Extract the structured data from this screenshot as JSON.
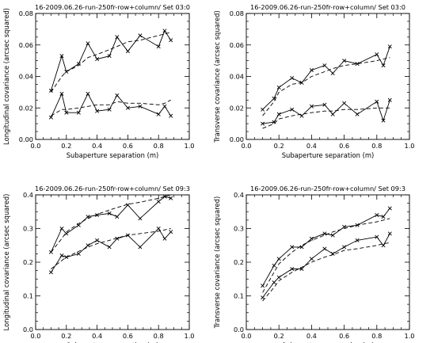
{
  "chart_data": [
    {
      "type": "line",
      "title": "16-2009.06.26-run-250fr-row+column/ Set 03:0",
      "xlabel": "Subaperture separation (m)",
      "ylabel": "Longitudinal covariance (arcsec squared)",
      "xlim": [
        0.0,
        1.0
      ],
      "ylim": [
        0.0,
        0.08
      ],
      "xticks": [
        "0.0",
        "0.2",
        "0.4",
        "0.6",
        "0.8",
        "1.0"
      ],
      "yticks": [
        "0.00",
        "0.02",
        "0.04",
        "0.06",
        "0.08"
      ],
      "grid": false,
      "series": [
        {
          "style": "solid-x",
          "x": [
            0.1,
            0.17,
            0.2,
            0.28,
            0.34,
            0.4,
            0.48,
            0.53,
            0.6,
            0.68,
            0.8,
            0.84,
            0.88
          ],
          "y": [
            0.031,
            0.053,
            0.043,
            0.048,
            0.061,
            0.051,
            0.053,
            0.065,
            0.056,
            0.066,
            0.059,
            0.069,
            0.063
          ]
        },
        {
          "style": "dashed",
          "x": [
            0.1,
            0.17,
            0.2,
            0.28,
            0.34,
            0.4,
            0.48,
            0.53,
            0.6,
            0.68,
            0.8,
            0.84,
            0.88
          ],
          "y": [
            0.03,
            0.04,
            0.043,
            0.047,
            0.052,
            0.054,
            0.057,
            0.059,
            0.062,
            0.063,
            0.066,
            0.067,
            0.068
          ]
        },
        {
          "style": "solid-x",
          "x": [
            0.1,
            0.17,
            0.2,
            0.28,
            0.34,
            0.4,
            0.48,
            0.53,
            0.6,
            0.68,
            0.8,
            0.84,
            0.88
          ],
          "y": [
            0.014,
            0.029,
            0.017,
            0.017,
            0.029,
            0.018,
            0.019,
            0.028,
            0.02,
            0.021,
            0.016,
            0.021,
            0.015
          ]
        },
        {
          "style": "dashed",
          "x": [
            0.1,
            0.17,
            0.2,
            0.28,
            0.34,
            0.4,
            0.48,
            0.53,
            0.6,
            0.68,
            0.8,
            0.84,
            0.88
          ],
          "y": [
            0.015,
            0.019,
            0.019,
            0.02,
            0.021,
            0.022,
            0.022,
            0.024,
            0.023,
            0.023,
            0.022,
            0.023,
            0.025
          ]
        }
      ]
    },
    {
      "type": "line",
      "title": "16-2009.06.26-run-250fr-row+column/ Set 03:0",
      "xlabel": "Subaperture separation (m)",
      "ylabel": "Transverse covariance (arcsec squared)",
      "xlim": [
        0.0,
        1.0
      ],
      "ylim": [
        0.0,
        0.08
      ],
      "xticks": [
        "0.0",
        "0.2",
        "0.4",
        "0.6",
        "0.8",
        "1.0"
      ],
      "yticks": [
        "0.00",
        "0.02",
        "0.04",
        "0.06",
        "0.08"
      ],
      "grid": false,
      "series": [
        {
          "style": "solid-x",
          "x": [
            0.1,
            0.17,
            0.2,
            0.28,
            0.34,
            0.4,
            0.48,
            0.53,
            0.6,
            0.68,
            0.8,
            0.84,
            0.88
          ],
          "y": [
            0.019,
            0.026,
            0.033,
            0.039,
            0.036,
            0.044,
            0.047,
            0.042,
            0.05,
            0.048,
            0.054,
            0.047,
            0.059
          ]
        },
        {
          "style": "dashed",
          "x": [
            0.1,
            0.17,
            0.2,
            0.28,
            0.34,
            0.4,
            0.48,
            0.53,
            0.6,
            0.68,
            0.8,
            0.84,
            0.88
          ],
          "y": [
            0.015,
            0.024,
            0.03,
            0.035,
            0.036,
            0.04,
            0.043,
            0.045,
            0.047,
            0.048,
            0.05,
            0.051,
            0.052
          ]
        },
        {
          "style": "solid-x",
          "x": [
            0.1,
            0.17,
            0.2,
            0.28,
            0.34,
            0.4,
            0.48,
            0.53,
            0.6,
            0.68,
            0.8,
            0.84,
            0.88
          ],
          "y": [
            0.01,
            0.011,
            0.016,
            0.019,
            0.015,
            0.021,
            0.022,
            0.016,
            0.023,
            0.016,
            0.024,
            0.012,
            0.025
          ]
        },
        {
          "style": "dashed",
          "x": [
            0.1,
            0.17,
            0.2,
            0.28,
            0.34,
            0.4,
            0.48,
            0.53,
            0.6,
            0.68,
            0.8,
            0.84,
            0.88
          ],
          "y": [
            0.007,
            0.01,
            0.013,
            0.015,
            0.016,
            0.017,
            0.018,
            0.018,
            0.019,
            0.019,
            0.02,
            0.02,
            0.02
          ]
        }
      ]
    },
    {
      "type": "line",
      "title": "16-2009.06.26-run-250fr-row+column/ Set 09:3",
      "xlabel": "Subaperture separation (m)",
      "ylabel": "Longitudinal covariance (arcsec squared)",
      "xlim": [
        0.0,
        1.0
      ],
      "ylim": [
        0.0,
        0.4
      ],
      "xticks": [
        "0.0",
        "0.2",
        "0.4",
        "0.6",
        "0.8",
        "1.0"
      ],
      "yticks": [
        "0.0",
        "0.1",
        "0.2",
        "0.3",
        "0.4"
      ],
      "grid": false,
      "series": [
        {
          "style": "solid-x",
          "x": [
            0.1,
            0.17,
            0.2,
            0.28,
            0.34,
            0.4,
            0.48,
            0.53,
            0.6,
            0.68,
            0.8,
            0.84,
            0.88
          ],
          "y": [
            0.23,
            0.3,
            0.285,
            0.31,
            0.335,
            0.34,
            0.345,
            0.335,
            0.37,
            0.33,
            0.38,
            0.395,
            0.39
          ]
        },
        {
          "style": "dashed",
          "x": [
            0.1,
            0.17,
            0.2,
            0.28,
            0.34,
            0.4,
            0.48,
            0.53,
            0.6,
            0.68,
            0.8,
            0.84,
            0.88
          ],
          "y": [
            0.23,
            0.27,
            0.29,
            0.315,
            0.33,
            0.342,
            0.355,
            0.362,
            0.372,
            0.378,
            0.39,
            0.395,
            0.4
          ]
        },
        {
          "style": "solid-x",
          "x": [
            0.1,
            0.17,
            0.2,
            0.28,
            0.34,
            0.4,
            0.48,
            0.53,
            0.6,
            0.68,
            0.8,
            0.84,
            0.88
          ],
          "y": [
            0.17,
            0.22,
            0.215,
            0.225,
            0.25,
            0.265,
            0.245,
            0.27,
            0.28,
            0.245,
            0.3,
            0.27,
            0.29
          ]
        },
        {
          "style": "dashed",
          "x": [
            0.1,
            0.17,
            0.2,
            0.28,
            0.34,
            0.4,
            0.48,
            0.53,
            0.6,
            0.68,
            0.8,
            0.84,
            0.88
          ],
          "y": [
            0.18,
            0.205,
            0.215,
            0.232,
            0.245,
            0.255,
            0.265,
            0.272,
            0.28,
            0.285,
            0.292,
            0.296,
            0.3
          ]
        }
      ]
    },
    {
      "type": "line",
      "title": "16-2009.06.26-run-250fr-row+column/ Set 09:3",
      "xlabel": "Subaperture separation (m)",
      "ylabel": "Transverse covariance (arcsec squared)",
      "xlim": [
        0.0,
        1.0
      ],
      "ylim": [
        0.0,
        0.4
      ],
      "xticks": [
        "0.0",
        "0.2",
        "0.4",
        "0.6",
        "0.8",
        "1.0"
      ],
      "yticks": [
        "0.0",
        "0.1",
        "0.2",
        "0.3",
        "0.4"
      ],
      "grid": false,
      "series": [
        {
          "style": "solid-x",
          "x": [
            0.1,
            0.17,
            0.2,
            0.28,
            0.34,
            0.4,
            0.48,
            0.53,
            0.6,
            0.68,
            0.8,
            0.84,
            0.88
          ],
          "y": [
            0.13,
            0.19,
            0.21,
            0.245,
            0.245,
            0.27,
            0.285,
            0.28,
            0.305,
            0.31,
            0.34,
            0.335,
            0.36
          ]
        },
        {
          "style": "dashed",
          "x": [
            0.1,
            0.17,
            0.2,
            0.28,
            0.34,
            0.4,
            0.48,
            0.53,
            0.6,
            0.68,
            0.8,
            0.84,
            0.88
          ],
          "y": [
            0.11,
            0.17,
            0.195,
            0.23,
            0.25,
            0.265,
            0.28,
            0.29,
            0.3,
            0.31,
            0.32,
            0.325,
            0.33
          ]
        },
        {
          "style": "solid-x",
          "x": [
            0.1,
            0.17,
            0.2,
            0.28,
            0.34,
            0.4,
            0.48,
            0.53,
            0.6,
            0.68,
            0.8,
            0.84,
            0.88
          ],
          "y": [
            0.095,
            0.14,
            0.155,
            0.18,
            0.18,
            0.21,
            0.24,
            0.225,
            0.245,
            0.265,
            0.275,
            0.25,
            0.285
          ]
        },
        {
          "style": "dashed",
          "x": [
            0.1,
            0.17,
            0.2,
            0.28,
            0.34,
            0.4,
            0.48,
            0.53,
            0.6,
            0.68,
            0.8,
            0.84,
            0.88
          ],
          "y": [
            0.085,
            0.125,
            0.145,
            0.17,
            0.185,
            0.2,
            0.215,
            0.222,
            0.235,
            0.24,
            0.25,
            0.255,
            0.258
          ]
        }
      ]
    }
  ]
}
